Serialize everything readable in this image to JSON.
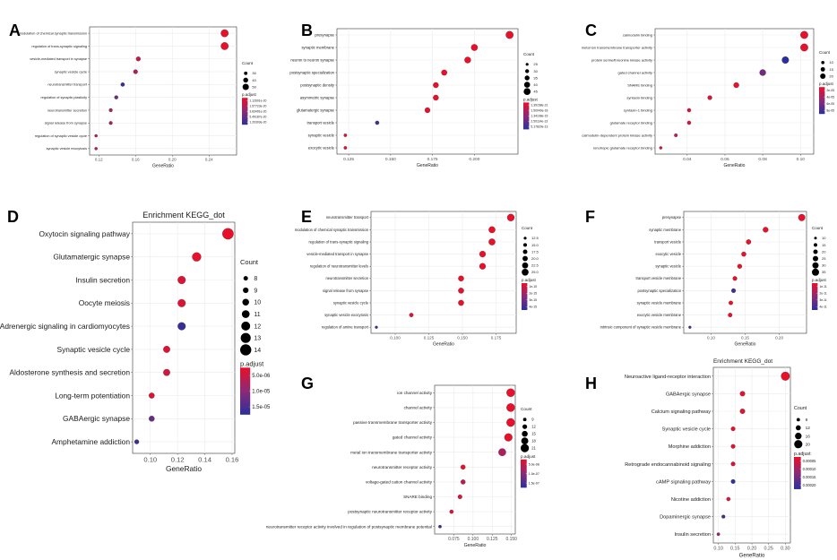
{
  "figure": {
    "description_note": ""
  },
  "chart_data": [
    {
      "panel": "A",
      "type": "scatter",
      "title": "",
      "xlabel": "GeneRatio",
      "ylabel": "",
      "xlim": [
        0.11,
        0.27
      ],
      "xticks": [
        "0.12",
        "0.16",
        "0.20",
        "0.24"
      ],
      "xtick_values": [
        0.12,
        0.16,
        0.2,
        0.24
      ],
      "categories": [
        "modulation of chemical synaptic transmission",
        "regulation of trans-synaptic signaling",
        "vesicle-mediated transport in synapse",
        "synaptic vesicle cycle",
        "neurotransmitter transport",
        "regulation of synaptic plasticity",
        "neurotransmitter secretion",
        "signal release from synapse",
        "regulation of synaptic vesicle cycle",
        "synaptic vesicle exocytosis"
      ],
      "x": [
        0.257,
        0.257,
        0.163,
        0.16,
        0.146,
        0.139,
        0.133,
        0.133,
        0.117,
        0.117
      ],
      "count": [
        58,
        58,
        37,
        36,
        33,
        31,
        30,
        30,
        26,
        26
      ],
      "p_adjust": [
        1.1e-20,
        1.1e-20,
        1.2e-19,
        2e-19,
        5.5e-19,
        4e-19,
        2e-19,
        2e-19,
        1.5e-19,
        1.5e-19
      ],
      "size_legend": {
        "title": "Count",
        "labels": [
          "30",
          "40",
          "50"
        ],
        "values": [
          30,
          40,
          50
        ]
      },
      "color_legend": {
        "title": "p.adjust",
        "labels": [
          "1.12601e-20",
          "1.57723e-20",
          "3.83491e-20",
          "5.49187e-20",
          "1.20303e-20"
        ],
        "min": 1e-20,
        "max": 6e-19
      }
    },
    {
      "panel": "B",
      "type": "scatter",
      "title": "",
      "xlabel": "GeneRatio",
      "ylabel": "",
      "xlim": [
        0.118,
        0.226
      ],
      "xticks": [
        "0.125",
        "0.150",
        "0.175",
        "0.200"
      ],
      "xtick_values": [
        0.125,
        0.15,
        0.175,
        0.2
      ],
      "categories": [
        "presynapse",
        "synaptic membrane",
        "neuron to neuron synapse",
        "postsynaptic specialization",
        "postsynaptic density",
        "asymmetric synapse",
        "glutamatergic synapse",
        "transport vesicle",
        "synaptic vesicle",
        "exocytic vesicle"
      ],
      "x": [
        0.221,
        0.2,
        0.196,
        0.182,
        0.177,
        0.177,
        0.172,
        0.142,
        0.123,
        0.123
      ],
      "count": [
        48,
        43,
        42,
        39,
        38,
        38,
        37,
        30,
        26,
        26
      ],
      "p_adjust": [
        1.3e-21,
        1.3e-20,
        1.3e-20,
        1.2e-17,
        1.3e-17,
        1.3e-17,
        1.3e-17,
        1.7e-13,
        1.3e-16,
        1.3e-16
      ],
      "size_legend": {
        "title": "Count",
        "labels": [
          "25",
          "30",
          "35",
          "40",
          "45"
        ],
        "values": [
          25,
          30,
          35,
          40,
          45
        ]
      },
      "color_legend": {
        "title": "p.adjust",
        "labels": [
          "1.39158e-21",
          "1.50040e-18",
          "1.34108e-15",
          "2.50114e-13",
          "5.17820e-13"
        ],
        "min": 1e-21,
        "max": 2e-13
      }
    },
    {
      "panel": "C",
      "type": "scatter",
      "title": "",
      "xlabel": "GeneRatio",
      "ylabel": "",
      "xlim": [
        0.023,
        0.107
      ],
      "xticks": [
        "0.04",
        "0.06",
        "0.08",
        "0.10"
      ],
      "xtick_values": [
        0.04,
        0.06,
        0.08,
        0.1
      ],
      "categories": [
        "calmodulin binding",
        "metal ion transmembrane transporter activity",
        "protein serine/threonine kinase activity",
        "gated channel activity",
        "SNARE binding",
        "syntaxin binding",
        "syntaxin-1 binding",
        "glutamate receptor binding",
        "calmodulin-dependent protein kinase activity",
        "ionotropic glutamate receptor binding"
      ],
      "x": [
        0.102,
        0.102,
        0.092,
        0.08,
        0.066,
        0.052,
        0.041,
        0.041,
        0.034,
        0.026
      ],
      "count": [
        30,
        30,
        27,
        24,
        20,
        15,
        12,
        12,
        10,
        8
      ],
      "p_adjust": [
        1e-05,
        1e-05,
        9e-05,
        6e-05,
        1e-05,
        1.5e-05,
        1.5e-05,
        1.5e-05,
        2.5e-05,
        2e-05
      ],
      "size_legend": {
        "title": "Count",
        "labels": [
          "10",
          "15",
          "20"
        ],
        "values": [
          10,
          15,
          20
        ]
      },
      "color_legend": {
        "title": "p.adjust",
        "labels": [
          "2e-05",
          "4e-05",
          "6e-05",
          "8e-05"
        ],
        "min": 1e-05,
        "max": 9e-05
      }
    },
    {
      "panel": "D",
      "type": "scatter",
      "title": "Enrichment KEGG_dot",
      "xlabel": "GeneRatio",
      "ylabel": "",
      "xlim": [
        0.087,
        0.162
      ],
      "xticks": [
        "0.10",
        "0.12",
        "0.14",
        "0.16"
      ],
      "xtick_values": [
        0.1,
        0.12,
        0.14,
        0.16
      ],
      "categories": [
        "Oxytocin signaling pathway",
        "Glutamatergic synapse",
        "Insulin secretion",
        "Oocyte meiosis",
        "Adrenergic signaling in cardiomyocytes",
        "Synaptic vesicle cycle",
        "Aldosterone synthesis and secretion",
        "Long-term potentiation",
        "GABAergic synapse",
        "Amphetamine addiction"
      ],
      "x": [
        0.157,
        0.134,
        0.123,
        0.123,
        0.123,
        0.112,
        0.112,
        0.101,
        0.101,
        0.09
      ],
      "count": [
        14,
        12,
        11,
        11,
        11,
        10,
        10,
        9,
        9,
        8
      ],
      "p_adjust": [
        1e-06,
        1e-06,
        2e-06,
        2e-06,
        1.6e-05,
        2e-06,
        3e-06,
        2e-06,
        1.2e-05,
        1.6e-05
      ],
      "size_legend": {
        "title": "Count",
        "labels": [
          "8",
          "9",
          "10",
          "11",
          "12",
          "13",
          "14"
        ],
        "values": [
          8,
          9,
          10,
          11,
          12,
          13,
          14
        ]
      },
      "color_legend": {
        "title": "p.adjust",
        "labels": [
          "5.0e-06",
          "1.0e-05",
          "1.5e-05"
        ],
        "min": 1e-06,
        "max": 1.7e-05
      }
    },
    {
      "panel": "E",
      "type": "scatter",
      "title": "",
      "xlabel": "GeneRatio",
      "ylabel": "",
      "xlim": [
        0.082,
        0.19
      ],
      "xticks": [
        "0.100",
        "0.125",
        "0.150",
        "0.175"
      ],
      "xtick_values": [
        0.1,
        0.125,
        0.15,
        0.175
      ],
      "categories": [
        "neurotransmitter transport",
        "modulation of chemical synaptic transmission",
        "regulation of trans-synaptic signaling",
        "vesicle-mediated transport in synapse",
        "regulation of neurotransmitter levels",
        "neurotransmitter secretion",
        "signal release from synapse",
        "synaptic vesicle cycle",
        "synaptic vesicle exocytosis",
        "regulation of amine transport"
      ],
      "x": [
        0.186,
        0.172,
        0.172,
        0.165,
        0.165,
        0.149,
        0.149,
        0.149,
        0.112,
        0.086
      ],
      "count": [
        26,
        24,
        24,
        23,
        23,
        21,
        21,
        21,
        16,
        12
      ],
      "p_adjust": [
        1e-16,
        1e-16,
        1e-16,
        1e-16,
        1e-16,
        1e-16,
        1e-16,
        1e-16,
        1e-16,
        3.9e-15
      ],
      "size_legend": {
        "title": "Count",
        "labels": [
          "12.5",
          "15.0",
          "17.5",
          "20.0",
          "22.5",
          "25.0"
        ],
        "values": [
          12.5,
          15,
          17.5,
          20,
          22.5,
          25
        ]
      },
      "color_legend": {
        "title": "p.adjust",
        "labels": [
          "1e-15",
          "2e-15",
          "3e-15",
          "4e-15"
        ],
        "min": 1e-16,
        "max": 4.2e-15
      }
    },
    {
      "panel": "F",
      "type": "scatter",
      "title": "",
      "xlabel": "GeneRatio",
      "ylabel": "",
      "xlim": [
        0.06,
        0.24
      ],
      "xticks": [
        "0.10",
        "0.15",
        "0.20"
      ],
      "xtick_values": [
        0.1,
        0.15,
        0.2
      ],
      "categories": [
        "presynapse",
        "synaptic membrane",
        "transport vesicle",
        "exocytic vesicle",
        "synaptic vesicle",
        "transport vesicle membrane",
        "postsynaptic specialization",
        "synaptic vesicle membrane",
        "exocytic vesicle membrane",
        "intrinsic component of synaptic vesicle membrane"
      ],
      "x": [
        0.233,
        0.18,
        0.155,
        0.148,
        0.142,
        0.135,
        0.133,
        0.129,
        0.128,
        0.069
      ],
      "count": [
        33,
        25,
        22,
        21,
        20,
        19,
        19,
        18,
        18,
        10
      ],
      "p_adjust": [
        1e-12,
        1e-12,
        1e-12,
        1e-12,
        1e-12,
        1e-12,
        3.8e-11,
        1e-12,
        1e-12,
        3.8e-11
      ],
      "size_legend": {
        "title": "Count",
        "labels": [
          "10",
          "15",
          "20",
          "25",
          "30",
          "35"
        ],
        "values": [
          10,
          15,
          20,
          25,
          30,
          35
        ]
      },
      "color_legend": {
        "title": "p.adjust",
        "labels": [
          "1e-11",
          "2e-11",
          "3e-11",
          "4e-11"
        ],
        "min": 1e-12,
        "max": 4.2e-11
      }
    },
    {
      "panel": "G",
      "type": "scatter",
      "title": "",
      "xlabel": "GeneRatio",
      "ylabel": "",
      "xlim": [
        0.05,
        0.155
      ],
      "xticks": [
        "0.075",
        "0.100",
        "0.125",
        "0.150"
      ],
      "xtick_values": [
        0.075,
        0.1,
        0.125,
        0.15
      ],
      "categories": [
        "ion channel activity",
        "channel activity",
        "passive transmembrane transporter activity",
        "gated channel activity",
        "metal ion transmembrane transporter activity",
        "neurotransmitter receptor activity",
        "voltage-gated cation channel activity",
        "SNARE binding",
        "postsynaptic neurotransmitter receptor activity",
        "neurotransmitter receptor activity involved in regulation of postsynaptic membrane potential"
      ],
      "x": [
        0.149,
        0.149,
        0.149,
        0.146,
        0.138,
        0.087,
        0.087,
        0.083,
        0.072,
        0.057
      ],
      "count": [
        21,
        21,
        21,
        20,
        19,
        12,
        12,
        11,
        10,
        8
      ],
      "p_adjust": [
        1e-08,
        1e-08,
        1e-08,
        1e-08,
        6e-08,
        1e-08,
        5e-08,
        2e-08,
        2e-08,
        1.6e-07
      ],
      "size_legend": {
        "title": "Count",
        "labels": [
          "9",
          "12",
          "15",
          "18",
          "21"
        ],
        "values": [
          9,
          12,
          15,
          18,
          21
        ]
      },
      "color_legend": {
        "title": "p.adjust",
        "labels": [
          "5.0e-08",
          "1.0e-07",
          "1.5e-07"
        ],
        "min": 1e-08,
        "max": 1.7e-07
      }
    },
    {
      "panel": "H",
      "type": "scatter",
      "title": "Enrichment KEGG_dot",
      "xlabel": "GeneRatio",
      "ylabel": "",
      "xlim": [
        0.085,
        0.315
      ],
      "xticks": [
        "0.10",
        "0.15",
        "0.20",
        "0.25",
        "0.30"
      ],
      "xtick_values": [
        0.1,
        0.15,
        0.2,
        0.25,
        0.3
      ],
      "categories": [
        "Neuroactive ligand-receptor interaction",
        "GABAergic synapse",
        "Calcium signaling pathway",
        "Synaptic vesicle cycle",
        "Morphine addiction",
        "Retrograde endocannabinoid signaling",
        "cAMP signaling pathway",
        "Nicotine addiction",
        "Dopaminergic synapse",
        "Insulin secretion"
      ],
      "x": [
        0.3,
        0.172,
        0.172,
        0.144,
        0.144,
        0.144,
        0.144,
        0.13,
        0.115,
        0.1
      ],
      "count": [
        21,
        12,
        12,
        10,
        10,
        10,
        10,
        9,
        8,
        7
      ],
      "p_adjust": [
        1e-05,
        1e-05,
        2e-05,
        1e-05,
        2e-05,
        3e-05,
        0.0002,
        2e-05,
        0.00019,
        0.0001
      ],
      "size_legend": {
        "title": "Count",
        "labels": [
          "8",
          "12",
          "16",
          "20"
        ],
        "values": [
          8,
          12,
          16,
          20
        ]
      },
      "color_legend": {
        "title": "p.adjust",
        "labels": [
          "0.00005",
          "0.00010",
          "0.00015",
          "0.00020"
        ],
        "min": 1e-05,
        "max": 0.00021
      }
    }
  ],
  "colors": {
    "high": "#e8102a",
    "mid": "#8b2a76",
    "low": "#2b2f9c",
    "grid": "#ebebeb",
    "frame": "#333333"
  }
}
